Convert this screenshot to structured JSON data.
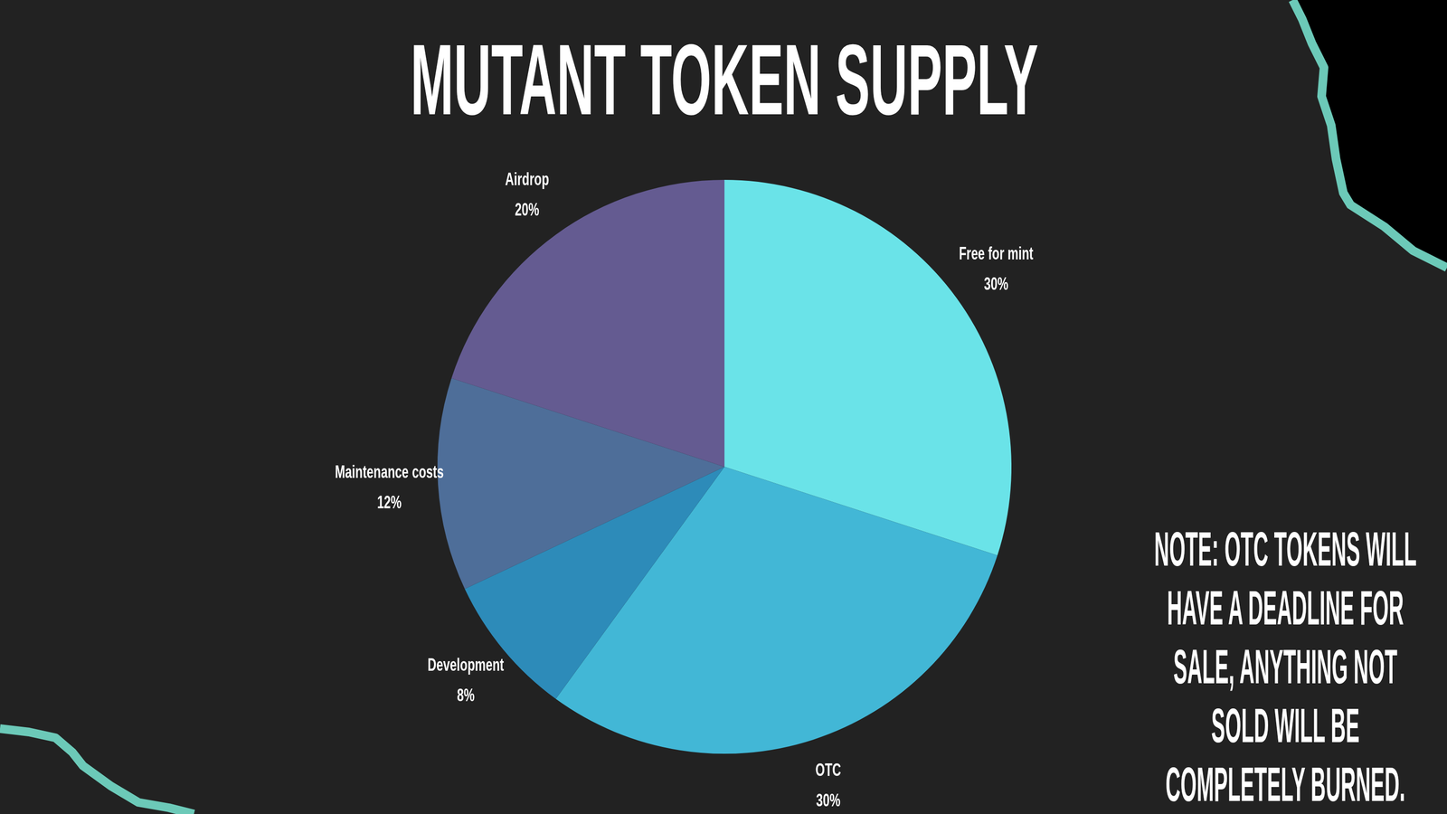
{
  "chart_data": {
    "type": "pie",
    "title": "MUTANT TOKEN SUPPLY",
    "categories": [
      "Free for mint",
      "OTC",
      "Development",
      "Maintenance costs",
      "Airdrop"
    ],
    "values": [
      30,
      30,
      8,
      12,
      20
    ],
    "value_labels": [
      "30%",
      "30%",
      "8%",
      "12%",
      "20%"
    ],
    "colors": [
      "#6ae3e8",
      "#42b7d6",
      "#2d8bb9",
      "#4e6e99",
      "#645b91"
    ],
    "data_labels": true,
    "annotations": [
      "NOTE: OTC TOKENS WILL HAVE A DEADLINE FOR SALE, ANYTHING NOT SOLD WILL BE COMPLETELY BURNED."
    ]
  }
}
